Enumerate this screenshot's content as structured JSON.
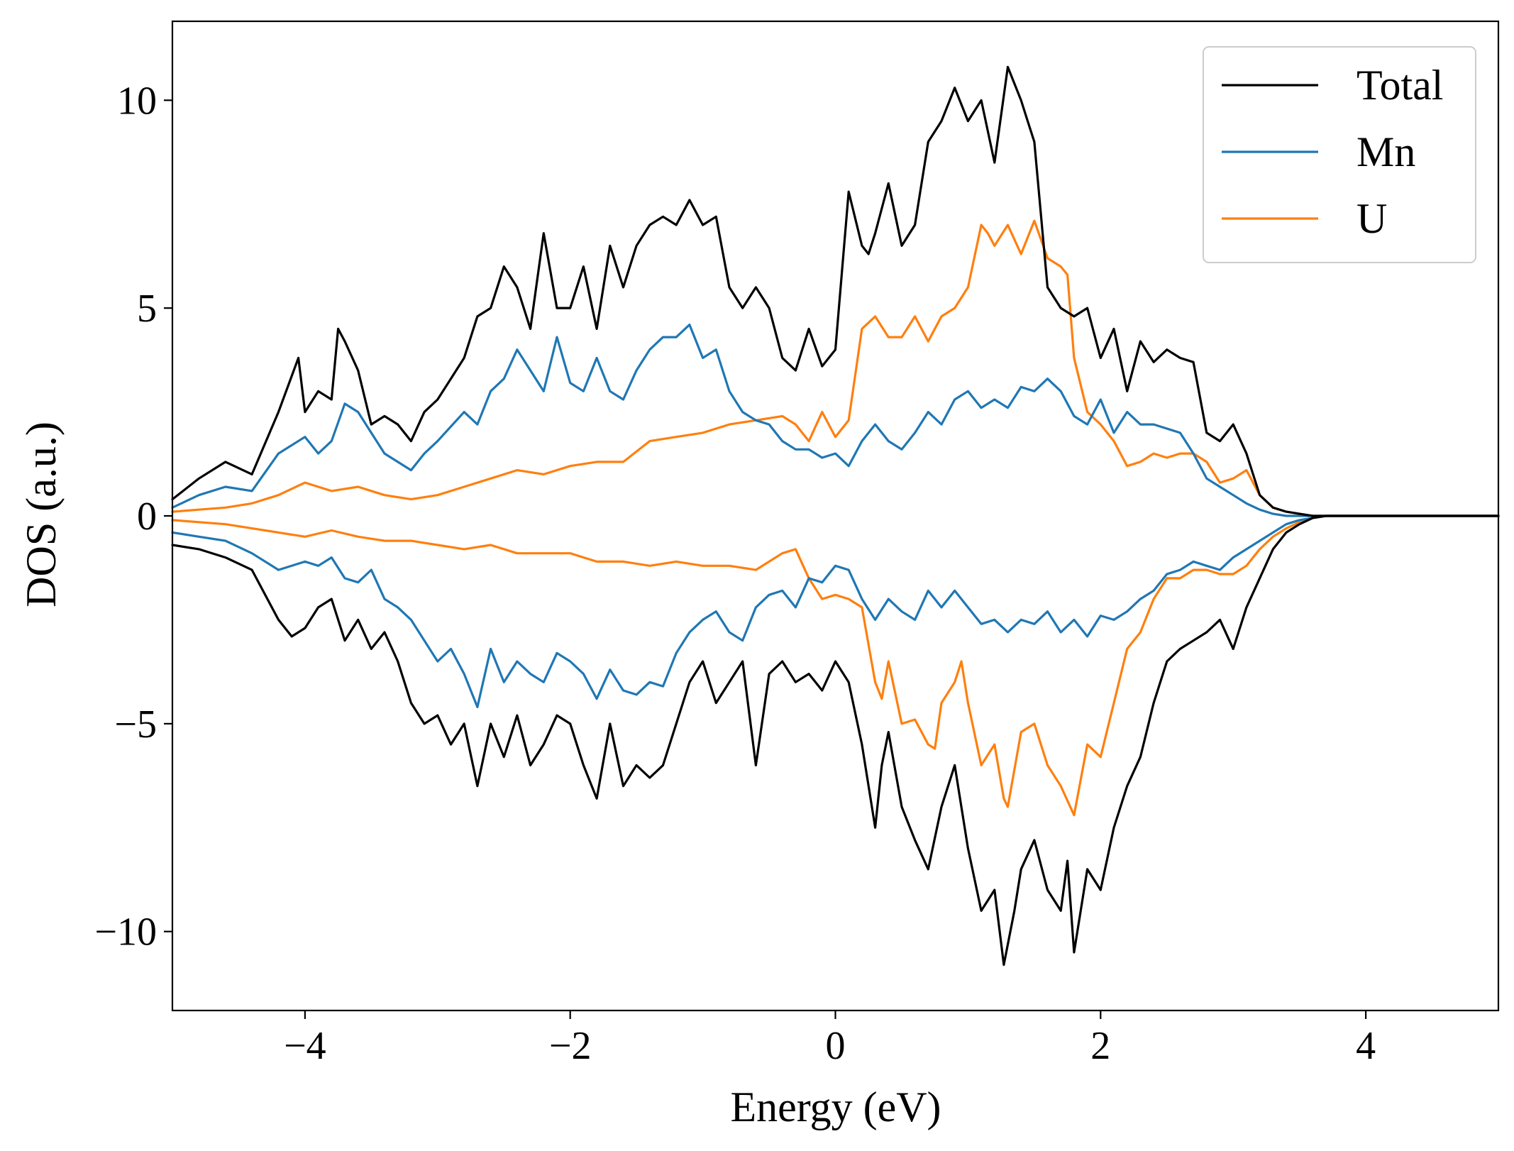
{
  "chart_data": {
    "type": "line",
    "title": "",
    "xlabel": "Energy (eV)",
    "ylabel": "DOS (a.u.)",
    "xlim": [
      -5,
      5
    ],
    "ylim": [
      -11.9,
      11.9
    ],
    "xticks": [
      -4,
      -2,
      0,
      2,
      4
    ],
    "xtick_labels": [
      "−4",
      "−2",
      "0",
      "2",
      "4"
    ],
    "yticks": [
      -10,
      -5,
      0,
      5,
      10
    ],
    "ytick_labels": [
      "−10",
      "−5",
      "0",
      "5",
      "10"
    ],
    "grid": false,
    "legend": "top-right",
    "series": [
      {
        "name": "Total",
        "color": "#000000",
        "up": {
          "x": [
            -5.0,
            -4.8,
            -4.6,
            -4.4,
            -4.2,
            -4.05,
            -4.0,
            -3.9,
            -3.8,
            -3.75,
            -3.7,
            -3.6,
            -3.5,
            -3.4,
            -3.3,
            -3.2,
            -3.1,
            -3.0,
            -2.8,
            -2.7,
            -2.6,
            -2.5,
            -2.4,
            -2.3,
            -2.2,
            -2.1,
            -2.0,
            -1.9,
            -1.8,
            -1.7,
            -1.6,
            -1.5,
            -1.4,
            -1.3,
            -1.2,
            -1.1,
            -1.0,
            -0.9,
            -0.8,
            -0.7,
            -0.6,
            -0.5,
            -0.4,
            -0.3,
            -0.2,
            -0.1,
            0.0,
            0.1,
            0.2,
            0.25,
            0.3,
            0.4,
            0.5,
            0.6,
            0.7,
            0.8,
            0.9,
            1.0,
            1.1,
            1.2,
            1.3,
            1.4,
            1.45,
            1.5,
            1.6,
            1.7,
            1.8,
            1.9,
            2.0,
            2.1,
            2.2,
            2.3,
            2.4,
            2.5,
            2.6,
            2.7,
            2.8,
            2.9,
            3.0,
            3.1,
            3.2,
            3.3,
            3.4,
            3.5,
            3.6,
            3.7,
            3.8,
            3.9,
            4.0,
            4.5,
            5.0
          ],
          "y": [
            0.4,
            0.9,
            1.3,
            1.0,
            2.5,
            3.8,
            2.5,
            3.0,
            2.8,
            4.5,
            4.2,
            3.5,
            2.2,
            2.4,
            2.2,
            1.8,
            2.5,
            2.8,
            3.8,
            4.8,
            5.0,
            6.0,
            5.5,
            4.5,
            6.8,
            5.0,
            5.0,
            6.0,
            4.5,
            6.5,
            5.5,
            6.5,
            7.0,
            7.2,
            7.0,
            7.6,
            7.0,
            7.2,
            5.5,
            5.0,
            5.5,
            5.0,
            3.8,
            3.5,
            4.5,
            3.6,
            4.0,
            7.8,
            6.5,
            6.3,
            6.8,
            8.0,
            6.5,
            7.0,
            9.0,
            9.5,
            10.3,
            9.5,
            10.0,
            8.5,
            10.8,
            10.0,
            9.5,
            9.0,
            5.5,
            5.0,
            4.8,
            5.0,
            3.8,
            4.5,
            3.0,
            4.2,
            3.7,
            4.0,
            3.8,
            3.7,
            2.0,
            1.8,
            2.2,
            1.5,
            0.5,
            0.2,
            0.1,
            0.05,
            0.0,
            0.0,
            0.0,
            0.0,
            0.0,
            0.0,
            0.0
          ]
        },
        "down": {
          "x": [
            -5.0,
            -4.8,
            -4.6,
            -4.4,
            -4.2,
            -4.1,
            -4.0,
            -3.9,
            -3.8,
            -3.7,
            -3.6,
            -3.5,
            -3.4,
            -3.3,
            -3.2,
            -3.1,
            -3.0,
            -2.9,
            -2.8,
            -2.7,
            -2.6,
            -2.5,
            -2.4,
            -2.3,
            -2.2,
            -2.1,
            -2.0,
            -1.9,
            -1.8,
            -1.7,
            -1.6,
            -1.5,
            -1.4,
            -1.3,
            -1.2,
            -1.1,
            -1.0,
            -0.9,
            -0.8,
            -0.7,
            -0.6,
            -0.5,
            -0.4,
            -0.3,
            -0.2,
            -0.1,
            0.0,
            0.1,
            0.2,
            0.3,
            0.35,
            0.4,
            0.5,
            0.6,
            0.7,
            0.8,
            0.9,
            1.0,
            1.1,
            1.2,
            1.27,
            1.35,
            1.4,
            1.5,
            1.6,
            1.7,
            1.75,
            1.8,
            1.9,
            2.0,
            2.1,
            2.2,
            2.3,
            2.4,
            2.5,
            2.6,
            2.7,
            2.8,
            2.9,
            3.0,
            3.1,
            3.2,
            3.3,
            3.4,
            3.5,
            3.6,
            3.7,
            3.8,
            3.9,
            4.0,
            4.5,
            5.0
          ],
          "y": [
            -0.7,
            -0.8,
            -1.0,
            -1.3,
            -2.5,
            -2.9,
            -2.7,
            -2.2,
            -2.0,
            -3.0,
            -2.5,
            -3.2,
            -2.8,
            -3.5,
            -4.5,
            -5.0,
            -4.8,
            -5.5,
            -5.0,
            -6.5,
            -5.0,
            -5.8,
            -4.8,
            -6.0,
            -5.5,
            -4.8,
            -5.0,
            -6.0,
            -6.8,
            -5.0,
            -6.5,
            -6.0,
            -6.3,
            -6.0,
            -5.0,
            -4.0,
            -3.5,
            -4.5,
            -4.0,
            -3.5,
            -6.0,
            -3.8,
            -3.5,
            -4.0,
            -3.8,
            -4.2,
            -3.5,
            -4.0,
            -5.5,
            -7.5,
            -6.0,
            -5.2,
            -7.0,
            -7.8,
            -8.5,
            -7.0,
            -6.0,
            -8.0,
            -9.5,
            -9.0,
            -10.8,
            -9.5,
            -8.5,
            -7.8,
            -9.0,
            -9.5,
            -8.3,
            -10.5,
            -8.5,
            -9.0,
            -7.5,
            -6.5,
            -5.8,
            -4.5,
            -3.5,
            -3.2,
            -3.0,
            -2.8,
            -2.5,
            -3.2,
            -2.2,
            -1.5,
            -0.8,
            -0.4,
            -0.2,
            -0.05,
            0.0,
            0.0,
            0.0,
            0.0,
            0.0,
            0.0
          ]
        }
      },
      {
        "name": "Mn",
        "color": "#1f77b4",
        "up": {
          "x": [
            -5.0,
            -4.8,
            -4.6,
            -4.4,
            -4.2,
            -4.0,
            -3.9,
            -3.8,
            -3.7,
            -3.6,
            -3.5,
            -3.4,
            -3.3,
            -3.2,
            -3.1,
            -3.0,
            -2.8,
            -2.7,
            -2.6,
            -2.5,
            -2.4,
            -2.3,
            -2.2,
            -2.1,
            -2.0,
            -1.9,
            -1.8,
            -1.7,
            -1.6,
            -1.5,
            -1.4,
            -1.3,
            -1.2,
            -1.1,
            -1.0,
            -0.9,
            -0.8,
            -0.7,
            -0.6,
            -0.5,
            -0.4,
            -0.3,
            -0.2,
            -0.1,
            0.0,
            0.1,
            0.2,
            0.3,
            0.4,
            0.5,
            0.6,
            0.7,
            0.8,
            0.9,
            1.0,
            1.1,
            1.2,
            1.3,
            1.4,
            1.5,
            1.6,
            1.7,
            1.8,
            1.9,
            2.0,
            2.1,
            2.2,
            2.3,
            2.4,
            2.5,
            2.6,
            2.7,
            2.8,
            2.9,
            3.0,
            3.1,
            3.2,
            3.3,
            3.4,
            3.5,
            3.6,
            3.7,
            3.8,
            3.9,
            4.0,
            4.5,
            5.0
          ],
          "y": [
            0.2,
            0.5,
            0.7,
            0.6,
            1.5,
            1.9,
            1.5,
            1.8,
            2.7,
            2.5,
            2.0,
            1.5,
            1.3,
            1.1,
            1.5,
            1.8,
            2.5,
            2.2,
            3.0,
            3.3,
            4.0,
            3.5,
            3.0,
            4.3,
            3.2,
            3.0,
            3.8,
            3.0,
            2.8,
            3.5,
            4.0,
            4.3,
            4.3,
            4.6,
            3.8,
            4.0,
            3.0,
            2.5,
            2.3,
            2.2,
            1.8,
            1.6,
            1.6,
            1.4,
            1.5,
            1.2,
            1.8,
            2.2,
            1.8,
            1.6,
            2.0,
            2.5,
            2.2,
            2.8,
            3.0,
            2.6,
            2.8,
            2.6,
            3.1,
            3.0,
            3.3,
            3.0,
            2.4,
            2.2,
            2.8,
            2.0,
            2.5,
            2.2,
            2.2,
            2.1,
            2.0,
            1.5,
            0.9,
            0.7,
            0.5,
            0.3,
            0.15,
            0.05,
            0.0,
            0.0,
            0.0,
            0.0,
            0.0,
            0.0,
            0.0,
            0.0,
            0.0
          ]
        },
        "down": {
          "x": [
            -5.0,
            -4.8,
            -4.6,
            -4.4,
            -4.2,
            -4.0,
            -3.9,
            -3.8,
            -3.7,
            -3.6,
            -3.5,
            -3.4,
            -3.3,
            -3.2,
            -3.1,
            -3.0,
            -2.9,
            -2.8,
            -2.7,
            -2.6,
            -2.5,
            -2.4,
            -2.3,
            -2.2,
            -2.1,
            -2.0,
            -1.9,
            -1.8,
            -1.7,
            -1.6,
            -1.5,
            -1.4,
            -1.3,
            -1.2,
            -1.1,
            -1.0,
            -0.9,
            -0.8,
            -0.7,
            -0.6,
            -0.5,
            -0.4,
            -0.3,
            -0.2,
            -0.1,
            0.0,
            0.1,
            0.2,
            0.3,
            0.4,
            0.5,
            0.6,
            0.7,
            0.8,
            0.9,
            1.0,
            1.1,
            1.2,
            1.3,
            1.4,
            1.5,
            1.6,
            1.7,
            1.8,
            1.9,
            2.0,
            2.1,
            2.2,
            2.3,
            2.4,
            2.5,
            2.6,
            2.7,
            2.8,
            2.9,
            3.0,
            3.1,
            3.2,
            3.3,
            3.4,
            3.5,
            3.6,
            3.7,
            3.8,
            3.9,
            4.0,
            4.5,
            5.0
          ],
          "y": [
            -0.4,
            -0.5,
            -0.6,
            -0.9,
            -1.3,
            -1.1,
            -1.2,
            -1.0,
            -1.5,
            -1.6,
            -1.3,
            -2.0,
            -2.2,
            -2.5,
            -3.0,
            -3.5,
            -3.2,
            -3.8,
            -4.6,
            -3.2,
            -4.0,
            -3.5,
            -3.8,
            -4.0,
            -3.3,
            -3.5,
            -3.8,
            -4.4,
            -3.7,
            -4.2,
            -4.3,
            -4.0,
            -4.1,
            -3.3,
            -2.8,
            -2.5,
            -2.3,
            -2.8,
            -3.0,
            -2.2,
            -1.9,
            -1.8,
            -2.2,
            -1.5,
            -1.6,
            -1.2,
            -1.3,
            -2.0,
            -2.5,
            -2.0,
            -2.3,
            -2.5,
            -1.8,
            -2.2,
            -1.8,
            -2.2,
            -2.6,
            -2.5,
            -2.8,
            -2.5,
            -2.6,
            -2.3,
            -2.8,
            -2.5,
            -2.9,
            -2.4,
            -2.5,
            -2.3,
            -2.0,
            -1.8,
            -1.4,
            -1.3,
            -1.1,
            -1.2,
            -1.3,
            -1.0,
            -0.8,
            -0.6,
            -0.4,
            -0.2,
            -0.1,
            -0.05,
            0.0,
            0.0,
            0.0,
            0.0,
            0.0,
            0.0
          ]
        }
      },
      {
        "name": "U",
        "color": "#ff7f0e",
        "up": {
          "x": [
            -5.0,
            -4.8,
            -4.6,
            -4.4,
            -4.2,
            -4.0,
            -3.8,
            -3.6,
            -3.4,
            -3.2,
            -3.0,
            -2.8,
            -2.6,
            -2.4,
            -2.2,
            -2.0,
            -1.8,
            -1.6,
            -1.4,
            -1.2,
            -1.0,
            -0.8,
            -0.6,
            -0.4,
            -0.3,
            -0.2,
            -0.1,
            0.0,
            0.1,
            0.2,
            0.3,
            0.4,
            0.5,
            0.6,
            0.7,
            0.8,
            0.9,
            1.0,
            1.1,
            1.15,
            1.2,
            1.3,
            1.4,
            1.5,
            1.6,
            1.7,
            1.75,
            1.8,
            1.9,
            2.0,
            2.1,
            2.2,
            2.3,
            2.4,
            2.5,
            2.6,
            2.7,
            2.8,
            2.9,
            3.0,
            3.1,
            3.2,
            3.3,
            3.4,
            3.5,
            3.6,
            3.7,
            3.8,
            3.9,
            4.0,
            4.5,
            5.0
          ],
          "y": [
            0.1,
            0.15,
            0.2,
            0.3,
            0.5,
            0.8,
            0.6,
            0.7,
            0.5,
            0.4,
            0.5,
            0.7,
            0.9,
            1.1,
            1.0,
            1.2,
            1.3,
            1.3,
            1.8,
            1.9,
            2.0,
            2.2,
            2.3,
            2.4,
            2.2,
            1.8,
            2.5,
            1.9,
            2.3,
            4.5,
            4.8,
            4.3,
            4.3,
            4.8,
            4.2,
            4.8,
            5.0,
            5.5,
            7.0,
            6.8,
            6.5,
            7.0,
            6.3,
            7.1,
            6.2,
            6.0,
            5.8,
            3.8,
            2.5,
            2.2,
            1.8,
            1.2,
            1.3,
            1.5,
            1.4,
            1.5,
            1.5,
            1.3,
            0.8,
            0.9,
            1.1,
            0.5,
            0.2,
            0.1,
            0.05,
            0.0,
            0.0,
            0.0,
            0.0,
            0.0,
            0.0,
            0.0
          ]
        },
        "down": {
          "x": [
            -5.0,
            -4.8,
            -4.6,
            -4.4,
            -4.2,
            -4.0,
            -3.8,
            -3.6,
            -3.4,
            -3.2,
            -3.0,
            -2.8,
            -2.6,
            -2.4,
            -2.2,
            -2.0,
            -1.8,
            -1.6,
            -1.4,
            -1.2,
            -1.0,
            -0.8,
            -0.6,
            -0.4,
            -0.3,
            -0.2,
            -0.1,
            0.0,
            0.1,
            0.2,
            0.3,
            0.35,
            0.4,
            0.5,
            0.6,
            0.7,
            0.75,
            0.8,
            0.9,
            0.95,
            1.0,
            1.1,
            1.2,
            1.27,
            1.3,
            1.4,
            1.5,
            1.6,
            1.7,
            1.8,
            1.9,
            2.0,
            2.1,
            2.2,
            2.3,
            2.4,
            2.5,
            2.6,
            2.7,
            2.8,
            2.9,
            3.0,
            3.1,
            3.2,
            3.3,
            3.4,
            3.5,
            3.6,
            3.7,
            3.8,
            3.9,
            4.0,
            4.5,
            5.0
          ],
          "y": [
            -0.1,
            -0.15,
            -0.2,
            -0.3,
            -0.4,
            -0.5,
            -0.35,
            -0.5,
            -0.6,
            -0.6,
            -0.7,
            -0.8,
            -0.7,
            -0.9,
            -0.9,
            -0.9,
            -1.1,
            -1.1,
            -1.2,
            -1.1,
            -1.2,
            -1.2,
            -1.3,
            -0.9,
            -0.8,
            -1.5,
            -2.0,
            -1.9,
            -2.0,
            -2.2,
            -4.0,
            -4.4,
            -3.5,
            -5.0,
            -4.9,
            -5.5,
            -5.6,
            -4.5,
            -4.0,
            -3.5,
            -4.5,
            -6.0,
            -5.5,
            -6.8,
            -7.0,
            -5.2,
            -5.0,
            -6.0,
            -6.5,
            -7.2,
            -5.5,
            -5.8,
            -4.5,
            -3.2,
            -2.8,
            -2.0,
            -1.5,
            -1.5,
            -1.3,
            -1.3,
            -1.4,
            -1.4,
            -1.2,
            -0.8,
            -0.5,
            -0.3,
            -0.15,
            -0.05,
            0.0,
            0.0,
            0.0,
            0.0,
            0.0,
            0.0
          ]
        }
      }
    ]
  }
}
